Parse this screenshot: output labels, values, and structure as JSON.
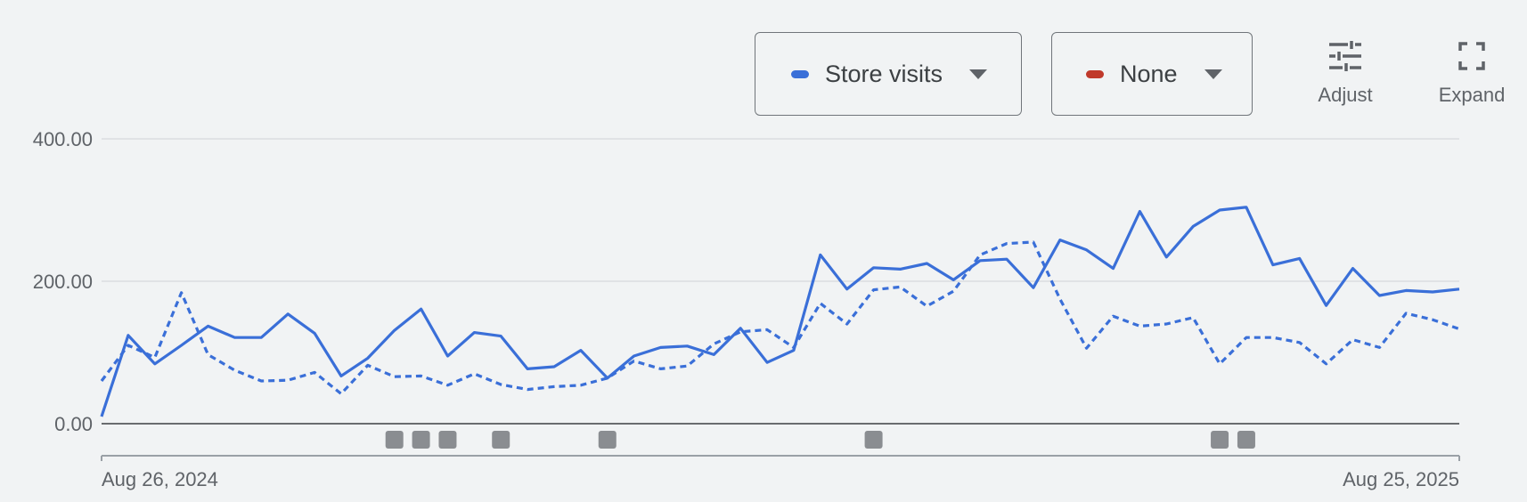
{
  "controls": {
    "primary_metric": {
      "label": "Store visits",
      "color": "#3a6fd8"
    },
    "secondary_metric": {
      "label": "None",
      "color": "#c0392b"
    },
    "adjust_label": "Adjust",
    "expand_label": "Expand",
    "adjust_icon": "tune-sliders-icon",
    "expand_icon": "fullscreen-icon"
  },
  "chart_data": {
    "type": "line",
    "x_start_label": "Aug 26, 2024",
    "x_end_label": "Aug 25, 2025",
    "ylim": [
      0,
      400
    ],
    "yticks": [
      "0.00",
      "200.00",
      "400.00"
    ],
    "grid": true,
    "line_color": "#3a6fd8",
    "series": [
      {
        "style": "solid",
        "values": [
          10,
          124,
          84,
          110,
          137,
          121,
          121,
          154,
          127,
          67,
          92,
          131,
          161,
          95,
          128,
          123,
          77,
          80,
          103,
          64,
          95,
          107,
          109,
          97,
          134,
          86,
          103,
          237,
          189,
          219,
          217,
          225,
          202,
          229,
          231,
          191,
          258,
          244,
          218,
          298,
          234,
          277,
          300,
          304,
          223,
          232,
          166,
          218,
          180,
          187,
          185,
          189
        ]
      },
      {
        "style": "dashed",
        "values": [
          60,
          110,
          93,
          184,
          97,
          75,
          60,
          61,
          72,
          42,
          82,
          66,
          67,
          54,
          70,
          55,
          48,
          52,
          54,
          64,
          88,
          77,
          81,
          112,
          129,
          132,
          107,
          169,
          140,
          188,
          192,
          165,
          186,
          237,
          253,
          255,
          175,
          106,
          151,
          137,
          140,
          149,
          84,
          121,
          121,
          114,
          84,
          118,
          107,
          155,
          146,
          133
        ]
      }
    ],
    "event_markers": [
      11,
      12,
      13,
      15,
      19,
      29,
      42,
      43
    ]
  }
}
